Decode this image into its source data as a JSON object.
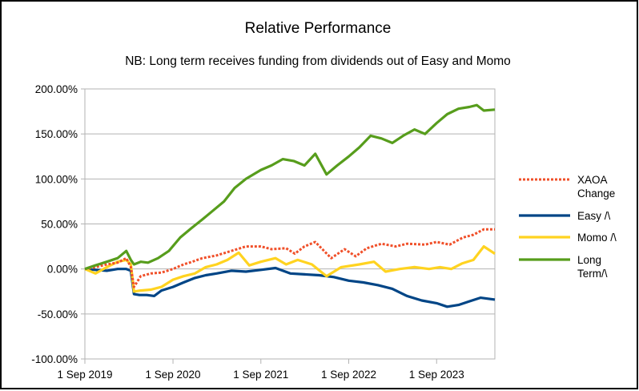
{
  "chart_data": {
    "type": "line",
    "title": "Relative Performance",
    "subtitle": "NB: Long term receives funding from dividends out of Easy and Momo",
    "xlabel": "",
    "ylabel": "",
    "ylim": [
      -1.0,
      2.0
    ],
    "xlim": [
      "2019-09-01",
      "2024-04-30"
    ],
    "y_ticks": [
      -1.0,
      -0.5,
      0.0,
      0.5,
      1.0,
      1.5,
      2.0
    ],
    "y_tick_labels": [
      "-100.00%",
      "-50.00%",
      "0.00%",
      "50.00%",
      "100.00%",
      "150.00%",
      "200.00%"
    ],
    "x_ticks": [
      "2019-09-01",
      "2020-09-01",
      "2021-09-01",
      "2022-09-01",
      "2023-09-01"
    ],
    "x_tick_labels": [
      "1 Sep 2019",
      "1 Sep 2020",
      "1 Sep 2021",
      "1 Sep 2022",
      "1 Sep 2023"
    ],
    "grid": "horizontal",
    "legend_position": "right",
    "series": [
      {
        "name": "XAOA Change",
        "legend_lines": [
          "XAOA",
          "Change"
        ],
        "color": "#f0502a",
        "style": "dotted",
        "points": [
          [
            "2019-09-01",
            0.0
          ],
          [
            "2019-10-15",
            0.02
          ],
          [
            "2019-12-01",
            0.05
          ],
          [
            "2020-01-15",
            0.07
          ],
          [
            "2020-02-20",
            0.12
          ],
          [
            "2020-03-10",
            0.02
          ],
          [
            "2020-03-23",
            -0.2
          ],
          [
            "2020-04-20",
            -0.08
          ],
          [
            "2020-06-01",
            -0.05
          ],
          [
            "2020-07-15",
            -0.04
          ],
          [
            "2020-09-01",
            0.0
          ],
          [
            "2020-10-15",
            0.05
          ],
          [
            "2020-11-20",
            0.08
          ],
          [
            "2021-01-01",
            0.12
          ],
          [
            "2021-03-01",
            0.15
          ],
          [
            "2021-05-01",
            0.2
          ],
          [
            "2021-07-01",
            0.25
          ],
          [
            "2021-09-01",
            0.25
          ],
          [
            "2021-10-15",
            0.22
          ],
          [
            "2021-12-15",
            0.23
          ],
          [
            "2022-01-20",
            0.17
          ],
          [
            "2022-03-01",
            0.25
          ],
          [
            "2022-04-15",
            0.3
          ],
          [
            "2022-06-20",
            0.12
          ],
          [
            "2022-08-15",
            0.22
          ],
          [
            "2022-09-30",
            0.14
          ],
          [
            "2022-11-15",
            0.23
          ],
          [
            "2023-01-15",
            0.28
          ],
          [
            "2023-03-15",
            0.25
          ],
          [
            "2023-05-01",
            0.28
          ],
          [
            "2023-07-15",
            0.27
          ],
          [
            "2023-09-01",
            0.3
          ],
          [
            "2023-10-25",
            0.27
          ],
          [
            "2023-12-20",
            0.35
          ],
          [
            "2024-02-01",
            0.38
          ],
          [
            "2024-03-15",
            0.44
          ],
          [
            "2024-04-30",
            0.44
          ]
        ]
      },
      {
        "name": "Easy /\\",
        "legend_lines": [
          "Easy /\\"
        ],
        "color": "#004586",
        "style": "solid",
        "points": [
          [
            "2019-09-01",
            0.0
          ],
          [
            "2019-10-15",
            -0.01
          ],
          [
            "2019-12-01",
            -0.02
          ],
          [
            "2020-01-15",
            0.0
          ],
          [
            "2020-02-20",
            0.0
          ],
          [
            "2020-03-10",
            -0.02
          ],
          [
            "2020-03-23",
            -0.28
          ],
          [
            "2020-04-15",
            -0.29
          ],
          [
            "2020-05-15",
            -0.29
          ],
          [
            "2020-06-15",
            -0.3
          ],
          [
            "2020-07-15",
            -0.24
          ],
          [
            "2020-09-01",
            -0.2
          ],
          [
            "2020-10-15",
            -0.15
          ],
          [
            "2020-12-01",
            -0.1
          ],
          [
            "2021-01-15",
            -0.07
          ],
          [
            "2021-03-01",
            -0.05
          ],
          [
            "2021-05-01",
            -0.02
          ],
          [
            "2021-07-01",
            -0.03
          ],
          [
            "2021-09-01",
            -0.01
          ],
          [
            "2021-11-01",
            0.01
          ],
          [
            "2022-01-01",
            -0.05
          ],
          [
            "2022-03-01",
            -0.06
          ],
          [
            "2022-05-01",
            -0.07
          ],
          [
            "2022-07-01",
            -0.09
          ],
          [
            "2022-09-01",
            -0.13
          ],
          [
            "2022-11-01",
            -0.15
          ],
          [
            "2023-01-01",
            -0.18
          ],
          [
            "2023-03-01",
            -0.22
          ],
          [
            "2023-05-01",
            -0.3
          ],
          [
            "2023-07-01",
            -0.35
          ],
          [
            "2023-09-01",
            -0.38
          ],
          [
            "2023-10-15",
            -0.42
          ],
          [
            "2023-12-01",
            -0.4
          ],
          [
            "2024-01-15",
            -0.36
          ],
          [
            "2024-03-01",
            -0.32
          ],
          [
            "2024-04-30",
            -0.34
          ]
        ]
      },
      {
        "name": "Momo /\\",
        "legend_lines": [
          "Momo /\\"
        ],
        "color": "#ffd320",
        "style": "solid",
        "points": [
          [
            "2019-09-01",
            0.0
          ],
          [
            "2019-10-15",
            -0.05
          ],
          [
            "2019-12-01",
            0.02
          ],
          [
            "2020-01-15",
            0.08
          ],
          [
            "2020-02-20",
            0.1
          ],
          [
            "2020-03-10",
            0.05
          ],
          [
            "2020-03-23",
            -0.25
          ],
          [
            "2020-04-20",
            -0.24
          ],
          [
            "2020-06-01",
            -0.23
          ],
          [
            "2020-07-15",
            -0.2
          ],
          [
            "2020-09-01",
            -0.12
          ],
          [
            "2020-10-15",
            -0.08
          ],
          [
            "2020-12-01",
            -0.05
          ],
          [
            "2021-01-15",
            0.02
          ],
          [
            "2021-03-01",
            0.05
          ],
          [
            "2021-04-15",
            0.1
          ],
          [
            "2021-06-01",
            0.18
          ],
          [
            "2021-07-15",
            0.04
          ],
          [
            "2021-09-01",
            0.08
          ],
          [
            "2021-11-01",
            0.12
          ],
          [
            "2021-12-15",
            0.05
          ],
          [
            "2022-02-01",
            0.1
          ],
          [
            "2022-04-01",
            0.05
          ],
          [
            "2022-06-01",
            -0.08
          ],
          [
            "2022-08-01",
            0.02
          ],
          [
            "2022-10-15",
            0.05
          ],
          [
            "2022-12-15",
            0.08
          ],
          [
            "2023-02-01",
            -0.03
          ],
          [
            "2023-04-01",
            0.0
          ],
          [
            "2023-06-01",
            0.02
          ],
          [
            "2023-08-01",
            0.0
          ],
          [
            "2023-09-15",
            0.02
          ],
          [
            "2023-11-01",
            0.0
          ],
          [
            "2023-12-15",
            0.06
          ],
          [
            "2024-02-01",
            0.1
          ],
          [
            "2024-03-15",
            0.25
          ],
          [
            "2024-04-30",
            0.17
          ]
        ]
      },
      {
        "name": "Long Term/\\",
        "legend_lines": [
          "Long",
          "Term/\\"
        ],
        "color": "#579d1c",
        "style": "solid",
        "points": [
          [
            "2019-09-01",
            0.0
          ],
          [
            "2019-10-15",
            0.04
          ],
          [
            "2019-12-01",
            0.08
          ],
          [
            "2020-01-15",
            0.12
          ],
          [
            "2020-02-20",
            0.2
          ],
          [
            "2020-03-10",
            0.1
          ],
          [
            "2020-03-23",
            0.05
          ],
          [
            "2020-04-20",
            0.08
          ],
          [
            "2020-05-20",
            0.07
          ],
          [
            "2020-07-01",
            0.12
          ],
          [
            "2020-08-15",
            0.2
          ],
          [
            "2020-10-01",
            0.35
          ],
          [
            "2020-11-15",
            0.45
          ],
          [
            "2021-01-01",
            0.55
          ],
          [
            "2021-02-15",
            0.65
          ],
          [
            "2021-04-01",
            0.75
          ],
          [
            "2021-05-15",
            0.9
          ],
          [
            "2021-07-01",
            1.0
          ],
          [
            "2021-09-01",
            1.1
          ],
          [
            "2021-10-15",
            1.15
          ],
          [
            "2021-12-01",
            1.22
          ],
          [
            "2022-01-15",
            1.2
          ],
          [
            "2022-03-01",
            1.15
          ],
          [
            "2022-04-15",
            1.28
          ],
          [
            "2022-06-01",
            1.05
          ],
          [
            "2022-07-15",
            1.15
          ],
          [
            "2022-09-01",
            1.25
          ],
          [
            "2022-10-15",
            1.35
          ],
          [
            "2022-12-01",
            1.48
          ],
          [
            "2023-01-15",
            1.45
          ],
          [
            "2023-03-01",
            1.4
          ],
          [
            "2023-04-15",
            1.48
          ],
          [
            "2023-06-01",
            1.55
          ],
          [
            "2023-07-15",
            1.5
          ],
          [
            "2023-09-01",
            1.62
          ],
          [
            "2023-10-15",
            1.72
          ],
          [
            "2023-12-01",
            1.78
          ],
          [
            "2024-01-15",
            1.8
          ],
          [
            "2024-02-15",
            1.82
          ],
          [
            "2024-03-15",
            1.76
          ],
          [
            "2024-04-30",
            1.77
          ]
        ]
      }
    ]
  }
}
